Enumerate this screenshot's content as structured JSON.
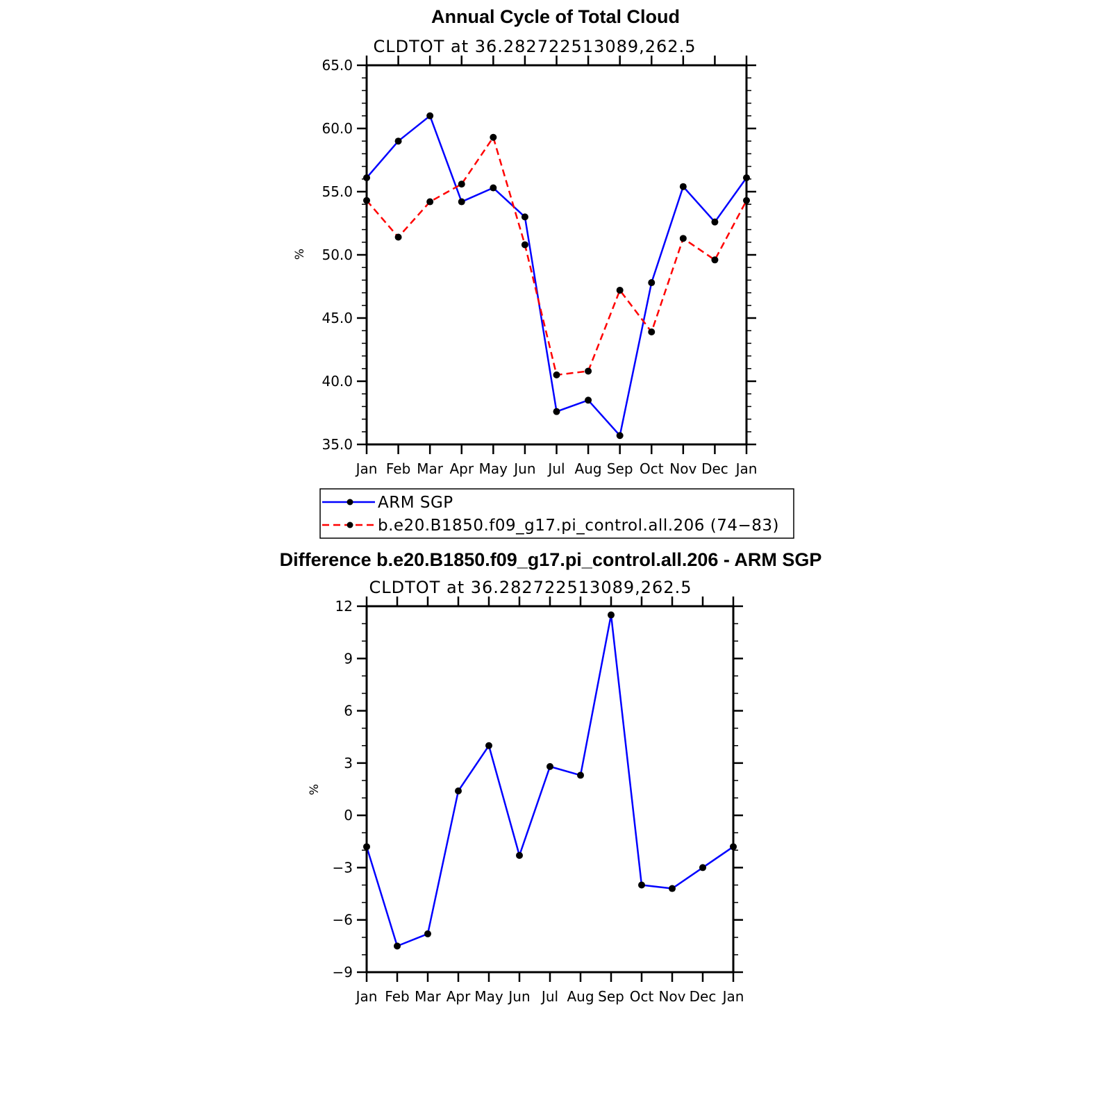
{
  "chart_data": [
    {
      "type": "line",
      "title": "Annual Cycle of Total Cloud",
      "subtitle": "CLDTOT at 36.282722513089,262.5",
      "ylabel": "%",
      "ylim": [
        35.0,
        65.0
      ],
      "yticks": [
        "35.0",
        "40.0",
        "45.0",
        "50.0",
        "55.0",
        "60.0",
        "65.0"
      ],
      "categories": [
        "Jan",
        "Feb",
        "Mar",
        "Apr",
        "May",
        "Jun",
        "Jul",
        "Aug",
        "Sep",
        "Oct",
        "Nov",
        "Dec",
        "Jan"
      ],
      "series": [
        {
          "name": "ARM SGP",
          "color": "#0000ff",
          "dash": "solid",
          "values": [
            56.1,
            59.0,
            61.0,
            54.2,
            55.3,
            53.0,
            37.6,
            38.5,
            35.7,
            47.8,
            55.4,
            52.6,
            56.1
          ]
        },
        {
          "name": "b.e20.B1850.f09_g17.pi_control.all.206 (74−83)",
          "color": "#ff0000",
          "dash": "dashed",
          "values": [
            54.3,
            51.4,
            54.2,
            55.6,
            59.3,
            50.8,
            40.5,
            40.8,
            47.2,
            43.9,
            51.3,
            49.6,
            54.3
          ]
        }
      ]
    },
    {
      "type": "line",
      "title": "Difference b.e20.B1850.f09_g17.pi_control.all.206 - ARM SGP",
      "subtitle": "CLDTOT at 36.282722513089,262.5",
      "ylabel": "%",
      "ylim": [
        -9,
        12
      ],
      "yticks": [
        "−9",
        "−6",
        "−3",
        "0",
        "3",
        "6",
        "9",
        "12"
      ],
      "categories": [
        "Jan",
        "Feb",
        "Mar",
        "Apr",
        "May",
        "Jun",
        "Jul",
        "Aug",
        "Sep",
        "Oct",
        "Nov",
        "Dec",
        "Jan"
      ],
      "series": [
        {
          "name": "Difference",
          "color": "#0000ff",
          "dash": "solid",
          "values": [
            -1.8,
            -7.5,
            -6.8,
            1.4,
            4.0,
            -2.3,
            2.8,
            2.3,
            11.5,
            -4.0,
            -4.2,
            -3.0,
            -1.8
          ]
        }
      ]
    }
  ]
}
